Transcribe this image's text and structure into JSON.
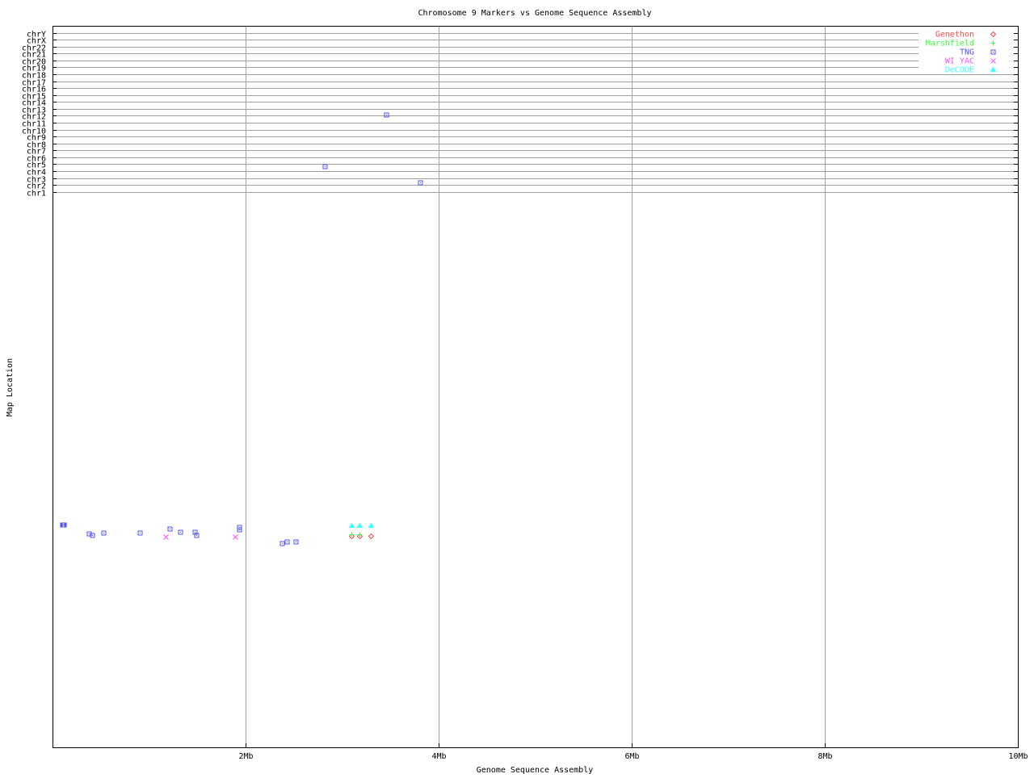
{
  "chart_data": {
    "type": "scatter",
    "title": "Chromosome 9 Markers vs Genome Sequence Assembly",
    "xlabel": "Genome Sequence Assembly",
    "ylabel": "Map Location",
    "xlim": [
      0,
      10
    ],
    "x_unit": "Mb",
    "x_ticks": [
      {
        "value": 2,
        "label": "2Mb"
      },
      {
        "value": 4,
        "label": "4Mb"
      },
      {
        "value": 6,
        "label": "6Mb"
      },
      {
        "value": 8,
        "label": "8Mb"
      },
      {
        "value": 10,
        "label": "10Mb"
      }
    ],
    "ylim": [
      -79.3,
      25
    ],
    "y_ticks": [
      "chr1",
      "chr2",
      "chr3",
      "chr4",
      "chr5",
      "chr6",
      "chr7",
      "chr8",
      "chr9",
      "chr10",
      "chr11",
      "chr12",
      "chr13",
      "chr14",
      "chr15",
      "chr16",
      "chr17",
      "chr18",
      "chr19",
      "chr20",
      "chr21",
      "chr22",
      "chrX",
      "chrY"
    ],
    "grid": true,
    "legend_position": "top-right",
    "series": [
      {
        "name": "Genethon",
        "color": "#ff4c4c",
        "marker": "diamond",
        "points": [
          [
            3.1,
            -48.7
          ],
          [
            3.18,
            -48.7
          ],
          [
            3.3,
            -48.7
          ]
        ]
      },
      {
        "name": "Marshfield",
        "color": "#40ff40",
        "marker": "plus",
        "points": [
          [
            3.1,
            -48.5
          ],
          [
            3.18,
            -48.5
          ]
        ]
      },
      {
        "name": "TNG",
        "color": "#5050ff",
        "marker": "square",
        "points": [
          [
            0.1,
            -47.1
          ],
          [
            0.11,
            -47.1
          ],
          [
            0.12,
            -47.1
          ],
          [
            0.38,
            -48.4
          ],
          [
            0.41,
            -48.6
          ],
          [
            0.53,
            -48.3
          ],
          [
            0.9,
            -48.3
          ],
          [
            1.21,
            -47.7
          ],
          [
            1.32,
            -48.1
          ],
          [
            1.47,
            -48.1
          ],
          [
            1.49,
            -48.6
          ],
          [
            1.93,
            -47.4
          ],
          [
            1.93,
            -47.8
          ],
          [
            2.38,
            -49.8
          ],
          [
            2.43,
            -49.6
          ],
          [
            2.52,
            -49.6
          ],
          [
            3.46,
            12.2
          ],
          [
            2.82,
            4.7
          ],
          [
            3.81,
            2.4
          ]
        ]
      },
      {
        "name": "WI YAC",
        "color": "#ff50ff",
        "marker": "x",
        "points": [
          [
            1.17,
            -48.9
          ],
          [
            1.89,
            -48.9
          ]
        ]
      },
      {
        "name": "DeCODE",
        "color": "#40ffff",
        "marker": "triangle",
        "points": [
          [
            3.1,
            -47.2
          ],
          [
            3.18,
            -47.2
          ],
          [
            3.3,
            -47.2
          ]
        ]
      }
    ]
  }
}
